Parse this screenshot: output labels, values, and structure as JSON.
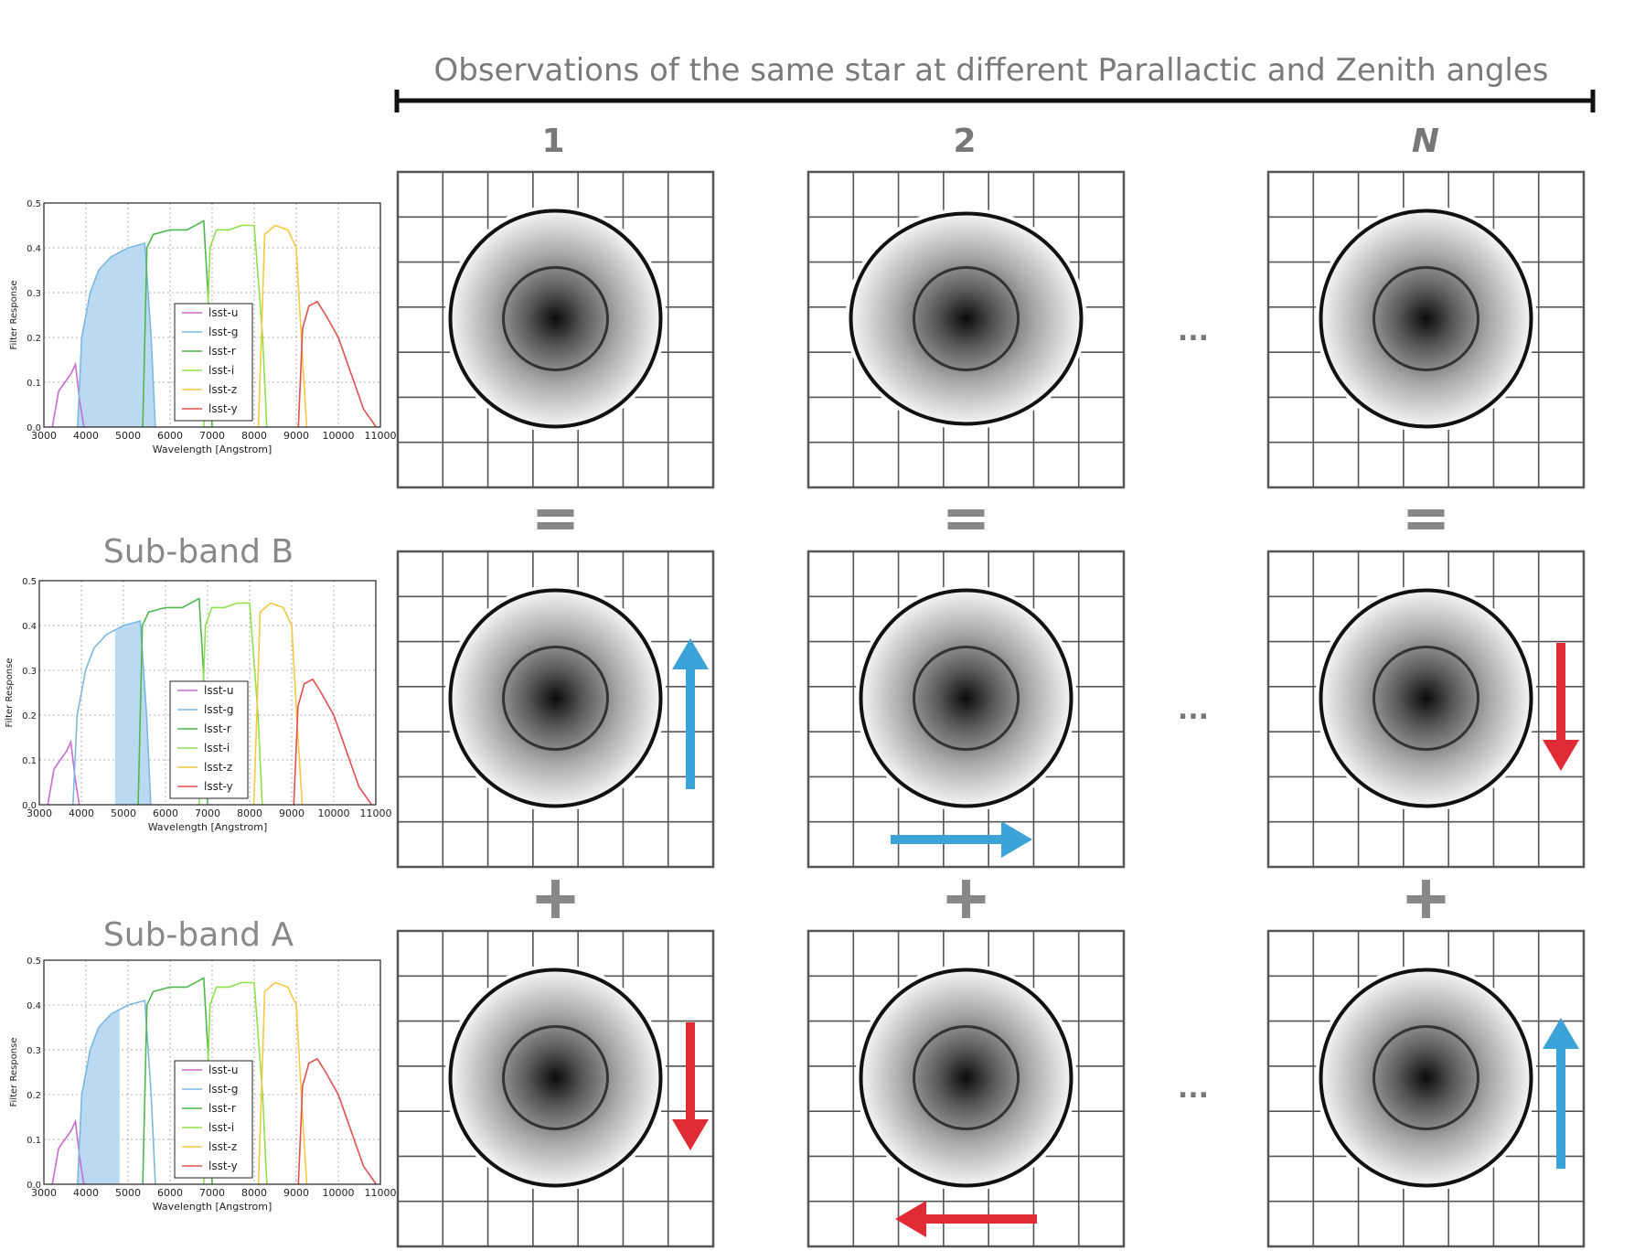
{
  "header": {
    "title": "Observations of the same star at different Parallactic and Zenith angles",
    "columns": [
      "1",
      "2",
      "N"
    ]
  },
  "rows": [
    {
      "label": "",
      "connector_before": ""
    },
    {
      "label": "Sub-band B",
      "connector_before": "="
    },
    {
      "label": "Sub-band A",
      "connector_before": "+"
    }
  ],
  "ellipsis": "...",
  "arrows": [
    [
      null,
      null,
      null
    ],
    [
      {
        "dir": "up",
        "color": "blue"
      },
      {
        "dir": "right",
        "color": "blue"
      },
      {
        "dir": "down",
        "color": "red"
      }
    ],
    [
      {
        "dir": "down",
        "color": "red"
      },
      {
        "dir": "left",
        "color": "red"
      },
      {
        "dir": "up",
        "color": "blue"
      }
    ]
  ],
  "colors": {
    "blue": "#3ba3d8",
    "red": "#e02a36",
    "filter_shade": "#bcd9f2",
    "grid": "#555555"
  },
  "filter_plot": {
    "ylabel": "Filter Response",
    "xlabel": "Wavelength [Angstrom]",
    "xticks": [
      "3000",
      "4000",
      "5000",
      "6000",
      "7000",
      "8000",
      "9000",
      "10000",
      "11000"
    ],
    "yticks": [
      "0.0",
      "0.1",
      "0.2",
      "0.3",
      "0.4",
      "0.5"
    ],
    "legend": [
      {
        "label": "lsst-u",
        "color": "#c86cd0"
      },
      {
        "label": "lsst-g",
        "color": "#7bb8e0"
      },
      {
        "label": "lsst-r",
        "color": "#4fb64f"
      },
      {
        "label": "lsst-i",
        "color": "#8fe04a"
      },
      {
        "label": "lsst-z",
        "color": "#f2c844"
      },
      {
        "label": "lsst-y",
        "color": "#e05050"
      }
    ],
    "shaded_ranges": [
      [
        3800,
        5650
      ],
      [
        4800,
        5700
      ],
      [
        3800,
        4800
      ]
    ]
  },
  "chart_data": {
    "type": "line",
    "title": "",
    "xlabel": "Wavelength [Angstrom]",
    "ylabel": "Filter Response",
    "xlim": [
      3000,
      11000
    ],
    "ylim": [
      0,
      0.5
    ],
    "grid": true,
    "legend_position": "center-left",
    "series": [
      {
        "name": "lsst-u",
        "x": [
          3200,
          3350,
          3500,
          3650,
          3750,
          3850,
          3950
        ],
        "y": [
          0.0,
          0.08,
          0.1,
          0.12,
          0.14,
          0.06,
          0.0
        ]
      },
      {
        "name": "lsst-g",
        "x": [
          3800,
          3900,
          4100,
          4300,
          4600,
          5000,
          5400,
          5550,
          5650
        ],
        "y": [
          0.0,
          0.2,
          0.3,
          0.35,
          0.38,
          0.4,
          0.41,
          0.2,
          0.0
        ]
      },
      {
        "name": "lsst-r",
        "x": [
          5350,
          5450,
          5600,
          6000,
          6400,
          6800,
          6900,
          7000
        ],
        "y": [
          0.0,
          0.4,
          0.43,
          0.44,
          0.44,
          0.46,
          0.3,
          0.0
        ]
      },
      {
        "name": "lsst-i",
        "x": [
          6800,
          6950,
          7100,
          7400,
          7700,
          8000,
          8200,
          8300
        ],
        "y": [
          0.0,
          0.4,
          0.44,
          0.44,
          0.45,
          0.45,
          0.2,
          0.0
        ]
      },
      {
        "name": "lsst-z",
        "x": [
          8100,
          8250,
          8500,
          8800,
          9000,
          9150,
          9250
        ],
        "y": [
          0.0,
          0.43,
          0.45,
          0.44,
          0.4,
          0.15,
          0.0
        ]
      },
      {
        "name": "lsst-y",
        "x": [
          9050,
          9150,
          9300,
          9500,
          9700,
          10000,
          10300,
          10600,
          10900
        ],
        "y": [
          0.0,
          0.22,
          0.27,
          0.28,
          0.25,
          0.2,
          0.12,
          0.04,
          0.0
        ]
      }
    ]
  }
}
